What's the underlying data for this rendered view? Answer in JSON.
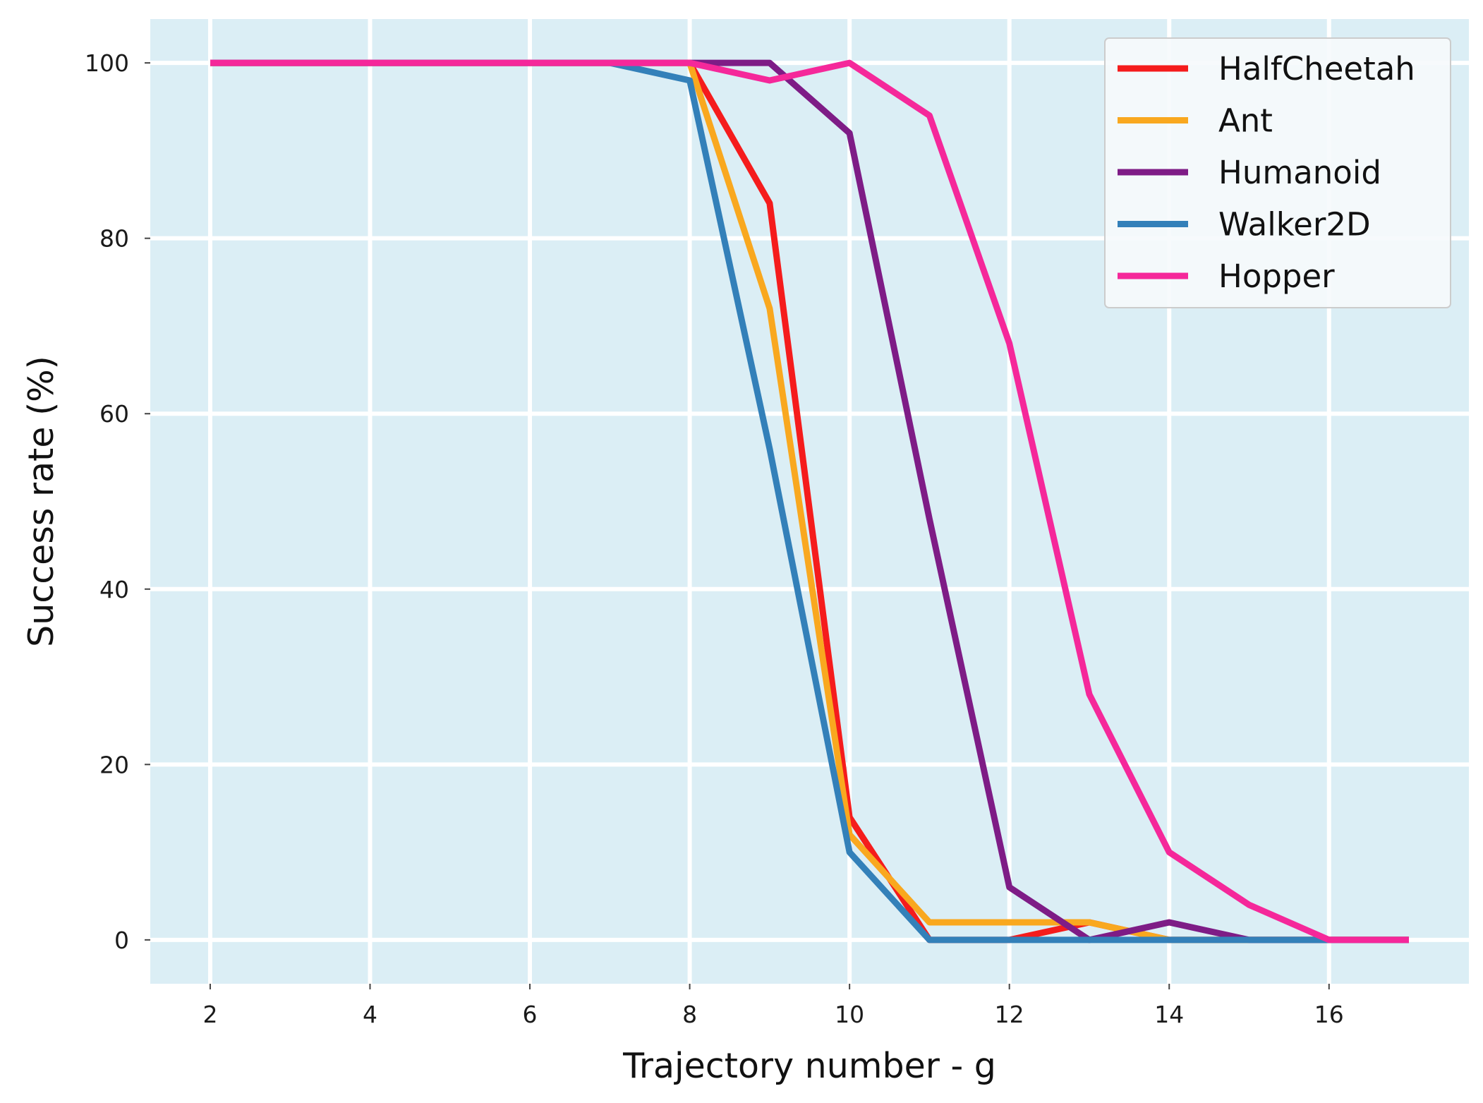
{
  "chart_data": {
    "type": "line",
    "title": "",
    "xlabel": "Trajectory number - g",
    "ylabel": "Success rate (%)",
    "xlim": [
      1.25,
      17.75
    ],
    "ylim": [
      -5,
      105
    ],
    "xticks": [
      2,
      4,
      6,
      8,
      10,
      12,
      14,
      16
    ],
    "yticks": [
      0,
      20,
      40,
      60,
      80,
      100
    ],
    "grid": true,
    "background_color": "#dbeef5",
    "legend_position": "top-right",
    "series": [
      {
        "name": "HalfCheetah",
        "color": "#f51c1c",
        "x": [
          2,
          3,
          4,
          5,
          6,
          7,
          8,
          9,
          10,
          11,
          12,
          13,
          14,
          15,
          16,
          17
        ],
        "values": [
          100,
          100,
          100,
          100,
          100,
          100,
          100,
          84,
          14,
          0,
          0,
          2,
          0,
          0,
          0,
          0
        ]
      },
      {
        "name": "Ant",
        "color": "#f9a81f",
        "x": [
          2,
          3,
          4,
          5,
          6,
          7,
          8,
          9,
          10,
          11,
          12,
          13,
          14,
          15,
          16,
          17
        ],
        "values": [
          100,
          100,
          100,
          100,
          100,
          100,
          100,
          72,
          12,
          2,
          2,
          2,
          0,
          0,
          0,
          0
        ]
      },
      {
        "name": "Humanoid",
        "color": "#7e1c86",
        "x": [
          2,
          3,
          4,
          5,
          6,
          7,
          8,
          9,
          10,
          11,
          12,
          13,
          14,
          15,
          16,
          17
        ],
        "values": [
          100,
          100,
          100,
          100,
          100,
          100,
          100,
          100,
          92,
          48,
          6,
          0,
          2,
          0,
          0,
          0
        ]
      },
      {
        "name": "Walker2D",
        "color": "#3380b9",
        "x": [
          2,
          3,
          4,
          5,
          6,
          7,
          8,
          9,
          10,
          11,
          12,
          13,
          14,
          15,
          16,
          17
        ],
        "values": [
          100,
          100,
          100,
          100,
          100,
          100,
          98,
          56,
          10,
          0,
          0,
          0,
          0,
          0,
          0,
          0
        ]
      },
      {
        "name": "Hopper",
        "color": "#f5289a",
        "x": [
          2,
          3,
          4,
          5,
          6,
          7,
          8,
          9,
          10,
          11,
          12,
          13,
          14,
          15,
          16,
          17
        ],
        "values": [
          100,
          100,
          100,
          100,
          100,
          100,
          100,
          98,
          100,
          94,
          68,
          28,
          10,
          4,
          0,
          0
        ]
      }
    ]
  }
}
